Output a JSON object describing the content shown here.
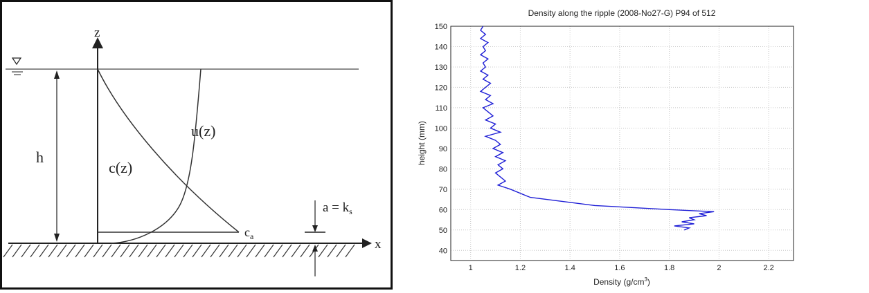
{
  "diagram": {
    "z_axis_label": "z",
    "x_axis_label": "x",
    "depth_label": "h",
    "concentration_label": "c(z)",
    "velocity_label": "u(z)",
    "reference_conc_label": "c",
    "reference_conc_sub": "a",
    "ref_level_label": "a = k",
    "ref_level_sub": "s"
  },
  "chart_data": {
    "type": "line",
    "title": "Density along the ripple (2008-No27-G) P94  of  512",
    "xlabel": "Density (g/cm",
    "xlabel_sup": "3",
    "xlabel_end": ")",
    "ylabel": "height (mm)",
    "xlim": [
      0.92,
      2.3
    ],
    "ylim": [
      35,
      150
    ],
    "xticks": [
      1,
      1.2,
      1.4,
      1.6,
      1.8,
      2,
      2.2
    ],
    "xtick_labels": [
      "1",
      "1.2",
      "1.4",
      "1.6",
      "1.8",
      "2",
      "2.2"
    ],
    "yticks": [
      40,
      50,
      60,
      70,
      80,
      90,
      100,
      110,
      120,
      130,
      140,
      150
    ],
    "ytick_labels": [
      "40",
      "50",
      "60",
      "70",
      "80",
      "90",
      "100",
      "110",
      "120",
      "130",
      "140",
      "150"
    ],
    "grid": true,
    "line_color": "#1f1fd6",
    "series": [
      {
        "x": [
          1.05,
          1.04,
          1.06,
          1.04,
          1.07,
          1.05,
          1.06,
          1.04,
          1.07,
          1.05,
          1.06,
          1.04,
          1.07,
          1.05,
          1.08,
          1.06,
          1.04,
          1.08,
          1.06,
          1.09,
          1.05,
          1.07,
          1.09,
          1.06,
          1.1,
          1.08,
          1.12,
          1.06,
          1.1,
          1.12,
          1.09,
          1.13,
          1.1,
          1.14,
          1.11,
          1.13,
          1.1,
          1.12,
          1.14,
          1.11,
          1.16,
          1.24,
          1.5,
          1.8,
          1.98,
          1.92,
          1.95,
          1.88,
          1.9,
          1.85,
          1.9,
          1.82,
          1.88,
          1.86
        ],
        "y": [
          150,
          148,
          146,
          144,
          142,
          140,
          138,
          136,
          134,
          132,
          130,
          128,
          126,
          124,
          122,
          120,
          118,
          116,
          114,
          112,
          110,
          108,
          106,
          104,
          102,
          100,
          98,
          96,
          94,
          92,
          90,
          88,
          86,
          84,
          82,
          80,
          78,
          76,
          74,
          72,
          70,
          66,
          62,
          60,
          59,
          58,
          57,
          56,
          55,
          54,
          53,
          52,
          51,
          50
        ]
      }
    ]
  }
}
